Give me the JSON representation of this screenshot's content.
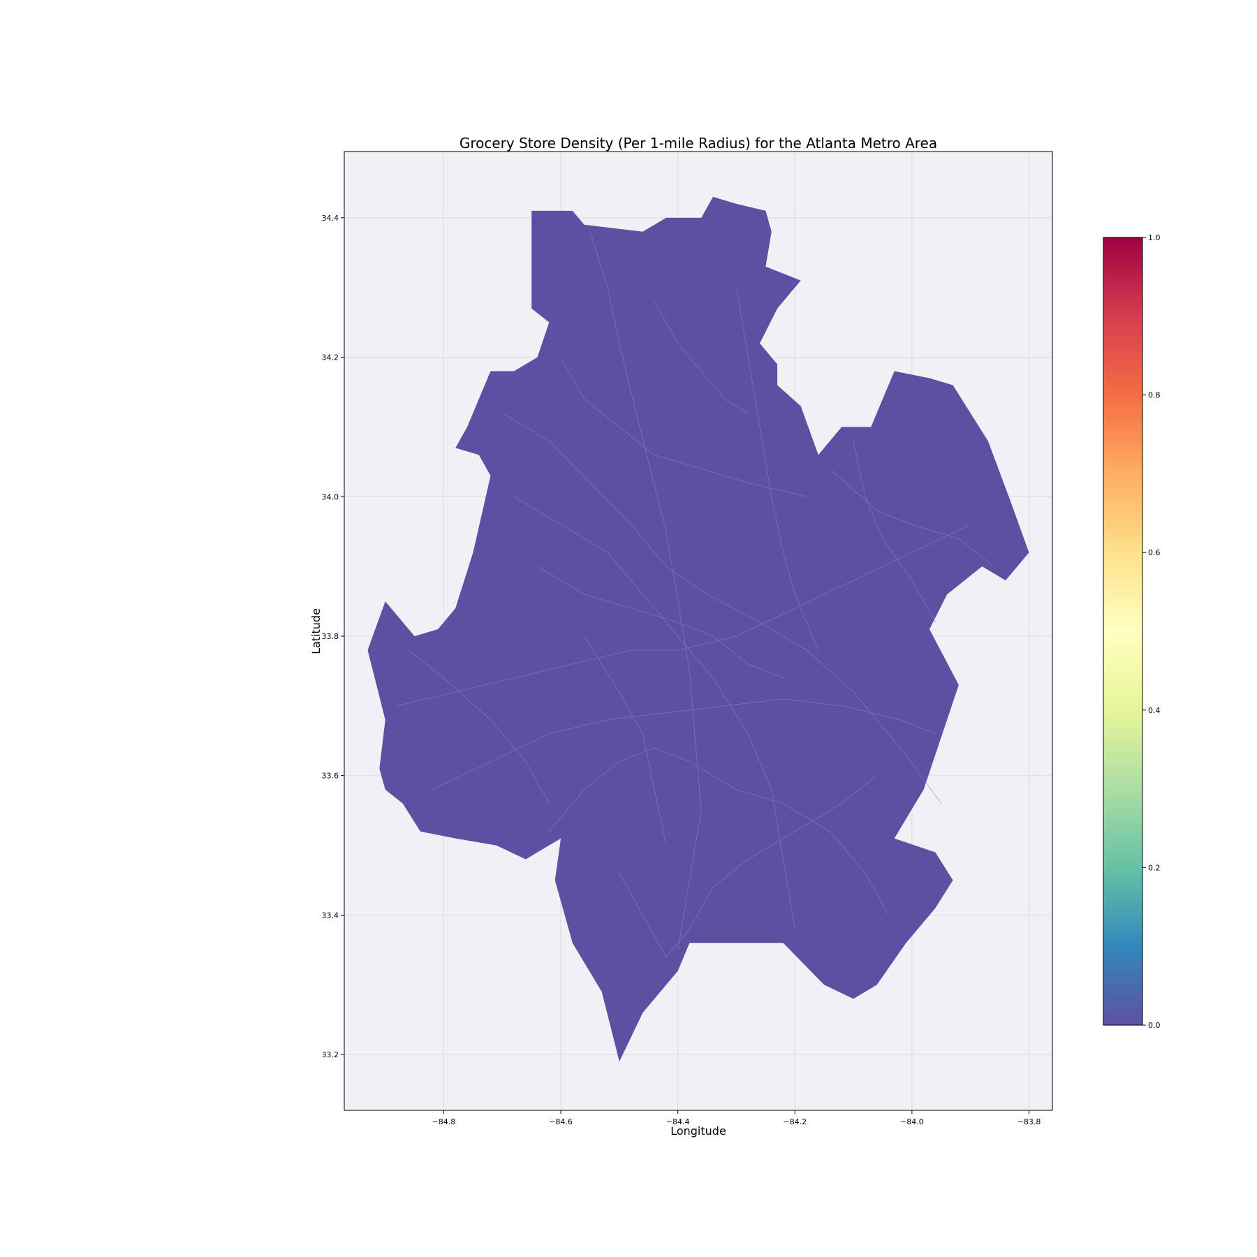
{
  "chart_data": {
    "type": "choropleth",
    "title": "Grocery Store Density (Per 1-mile Radius) for the Atlanta Metro Area",
    "xlabel": "Longitude",
    "ylabel": "Latitude",
    "xlim": [
      -84.97,
      -83.76
    ],
    "ylim": [
      33.12,
      34.495
    ],
    "x_ticks": [
      -84.8,
      -84.6,
      -84.4,
      -84.2,
      -84.0,
      -83.8
    ],
    "x_tick_labels": [
      "−84.8",
      "−84.6",
      "−84.4",
      "−84.2",
      "−84.0",
      "−83.8"
    ],
    "y_ticks": [
      33.2,
      33.4,
      33.6,
      33.8,
      34.0,
      34.2,
      34.4
    ],
    "y_tick_labels": [
      "33.2",
      "33.4",
      "33.6",
      "33.8",
      "34.0",
      "34.2",
      "34.4"
    ],
    "grid": true,
    "colorbar": {
      "colormap": "Spectral_r",
      "range": [
        0.0,
        1.0
      ],
      "ticks": [
        0.0,
        0.2,
        0.4,
        0.6,
        0.8,
        1.0
      ],
      "tick_labels": [
        "0.0",
        "0.2",
        "0.4",
        "0.6",
        "0.8",
        "1.0"
      ],
      "colors": [
        "#5e4fa2",
        "#3288bd",
        "#66c2a5",
        "#abdda4",
        "#e6f598",
        "#ffffbf",
        "#fee08b",
        "#fdae61",
        "#f46d43",
        "#d53e4f",
        "#9e0142"
      ]
    },
    "regions_value": 0.0,
    "region_fill": "#5e4fa2",
    "background": "#f0f0f5",
    "outline": [
      [
        -84.65,
        34.41
      ],
      [
        -84.58,
        34.41
      ],
      [
        -84.56,
        34.39
      ],
      [
        -84.46,
        34.38
      ],
      [
        -84.42,
        34.4
      ],
      [
        -84.36,
        34.4
      ],
      [
        -84.34,
        34.43
      ],
      [
        -84.3,
        34.42
      ],
      [
        -84.25,
        34.41
      ],
      [
        -84.24,
        34.38
      ],
      [
        -84.25,
        34.33
      ],
      [
        -84.19,
        34.31
      ],
      [
        -84.23,
        34.27
      ],
      [
        -84.26,
        34.22
      ],
      [
        -84.23,
        34.19
      ],
      [
        -84.23,
        34.16
      ],
      [
        -84.19,
        34.13
      ],
      [
        -84.16,
        34.06
      ],
      [
        -84.12,
        34.1
      ],
      [
        -84.07,
        34.1
      ],
      [
        -84.03,
        34.18
      ],
      [
        -83.97,
        34.17
      ],
      [
        -83.93,
        34.16
      ],
      [
        -83.87,
        34.08
      ],
      [
        -83.83,
        33.99
      ],
      [
        -83.8,
        33.92
      ],
      [
        -83.84,
        33.88
      ],
      [
        -83.88,
        33.9
      ],
      [
        -83.94,
        33.86
      ],
      [
        -83.97,
        33.81
      ],
      [
        -83.92,
        33.73
      ],
      [
        -83.98,
        33.58
      ],
      [
        -84.03,
        33.51
      ],
      [
        -83.96,
        33.49
      ],
      [
        -83.93,
        33.45
      ],
      [
        -83.96,
        33.41
      ],
      [
        -84.01,
        33.36
      ],
      [
        -84.06,
        33.3
      ],
      [
        -84.1,
        33.28
      ],
      [
        -84.15,
        33.3
      ],
      [
        -84.22,
        33.36
      ],
      [
        -84.3,
        33.36
      ],
      [
        -84.38,
        33.36
      ],
      [
        -84.4,
        33.32
      ],
      [
        -84.46,
        33.26
      ],
      [
        -84.5,
        33.19
      ],
      [
        -84.53,
        33.29
      ],
      [
        -84.58,
        33.36
      ],
      [
        -84.61,
        33.45
      ],
      [
        -84.6,
        33.51
      ],
      [
        -84.66,
        33.48
      ],
      [
        -84.71,
        33.5
      ],
      [
        -84.78,
        33.51
      ],
      [
        -84.84,
        33.52
      ],
      [
        -84.87,
        33.56
      ],
      [
        -84.9,
        33.58
      ],
      [
        -84.91,
        33.61
      ],
      [
        -84.9,
        33.68
      ],
      [
        -84.93,
        33.78
      ],
      [
        -84.9,
        33.85
      ],
      [
        -84.85,
        33.8
      ],
      [
        -84.81,
        33.81
      ],
      [
        -84.78,
        33.84
      ],
      [
        -84.75,
        33.92
      ],
      [
        -84.72,
        34.03
      ],
      [
        -84.74,
        34.06
      ],
      [
        -84.78,
        34.07
      ],
      [
        -84.76,
        34.1
      ],
      [
        -84.74,
        34.14
      ],
      [
        -84.72,
        34.18
      ],
      [
        -84.68,
        34.18
      ],
      [
        -84.64,
        34.2
      ],
      [
        -84.62,
        34.25
      ],
      [
        -84.65,
        34.27
      ],
      [
        -84.65,
        34.33
      ]
    ],
    "boundaries": [
      [
        [
          -84.55,
          34.38
        ],
        [
          -84.52,
          34.3
        ],
        [
          -84.5,
          34.22
        ],
        [
          -84.48,
          34.15
        ],
        [
          -84.45,
          34.05
        ],
        [
          -84.42,
          33.95
        ],
        [
          -84.4,
          33.85
        ],
        [
          -84.38,
          33.75
        ],
        [
          -84.37,
          33.65
        ],
        [
          -84.36,
          33.55
        ],
        [
          -84.38,
          33.45
        ],
        [
          -84.4,
          33.35
        ]
      ],
      [
        [
          -84.7,
          34.12
        ],
        [
          -84.62,
          34.08
        ],
        [
          -84.55,
          34.02
        ],
        [
          -84.48,
          33.96
        ],
        [
          -84.42,
          33.9
        ],
        [
          -84.35,
          33.86
        ],
        [
          -84.26,
          33.82
        ],
        [
          -84.18,
          33.78
        ],
        [
          -84.1,
          33.72
        ],
        [
          -84.02,
          33.64
        ],
        [
          -83.95,
          33.56
        ]
      ],
      [
        [
          -84.88,
          33.7
        ],
        [
          -84.78,
          33.72
        ],
        [
          -84.68,
          33.74
        ],
        [
          -84.58,
          33.76
        ],
        [
          -84.48,
          33.78
        ],
        [
          -84.4,
          33.78
        ],
        [
          -84.3,
          33.8
        ],
        [
          -84.2,
          33.84
        ],
        [
          -84.1,
          33.88
        ],
        [
          -84.0,
          33.92
        ],
        [
          -83.9,
          33.96
        ]
      ],
      [
        [
          -84.82,
          33.58
        ],
        [
          -84.72,
          33.62
        ],
        [
          -84.62,
          33.66
        ],
        [
          -84.52,
          33.68
        ],
        [
          -84.42,
          33.69
        ],
        [
          -84.32,
          33.7
        ],
        [
          -84.22,
          33.71
        ],
        [
          -84.12,
          33.7
        ],
        [
          -84.02,
          33.68
        ],
        [
          -83.96,
          33.66
        ]
      ],
      [
        [
          -84.62,
          33.52
        ],
        [
          -84.56,
          33.58
        ],
        [
          -84.5,
          33.62
        ],
        [
          -84.44,
          33.64
        ],
        [
          -84.38,
          33.62
        ],
        [
          -84.3,
          33.58
        ],
        [
          -84.22,
          33.56
        ],
        [
          -84.14,
          33.52
        ],
        [
          -84.08,
          33.46
        ],
        [
          -84.04,
          33.4
        ]
      ],
      [
        [
          -84.68,
          34.0
        ],
        [
          -84.6,
          33.96
        ],
        [
          -84.52,
          33.92
        ],
        [
          -84.44,
          33.84
        ],
        [
          -84.4,
          33.8
        ],
        [
          -84.34,
          33.74
        ],
        [
          -84.28,
          33.66
        ],
        [
          -84.24,
          33.58
        ],
        [
          -84.22,
          33.48
        ],
        [
          -84.2,
          33.38
        ]
      ],
      [
        [
          -84.3,
          34.3
        ],
        [
          -84.28,
          34.2
        ],
        [
          -84.26,
          34.1
        ],
        [
          -84.24,
          34.0
        ],
        [
          -84.22,
          33.92
        ],
        [
          -84.2,
          33.86
        ],
        [
          -84.16,
          33.78
        ]
      ],
      [
        [
          -84.1,
          34.08
        ],
        [
          -84.08,
          34.0
        ],
        [
          -84.05,
          33.94
        ],
        [
          -84.0,
          33.88
        ],
        [
          -83.96,
          33.82
        ]
      ],
      [
        [
          -84.86,
          33.78
        ],
        [
          -84.8,
          33.74
        ],
        [
          -84.72,
          33.68
        ],
        [
          -84.66,
          33.62
        ],
        [
          -84.62,
          33.56
        ]
      ],
      [
        [
          -84.6,
          34.2
        ],
        [
          -84.56,
          34.14
        ],
        [
          -84.5,
          34.1
        ],
        [
          -84.44,
          34.06
        ],
        [
          -84.36,
          34.04
        ],
        [
          -84.28,
          34.02
        ],
        [
          -84.18,
          34.0
        ]
      ],
      [
        [
          -84.64,
          33.9
        ],
        [
          -84.56,
          33.86
        ],
        [
          -84.48,
          33.84
        ],
        [
          -84.4,
          33.82
        ],
        [
          -84.34,
          33.8
        ],
        [
          -84.28,
          33.76
        ],
        [
          -84.22,
          33.74
        ]
      ],
      [
        [
          -84.5,
          33.46
        ],
        [
          -84.46,
          33.4
        ],
        [
          -84.42,
          33.34
        ],
        [
          -84.38,
          33.38
        ],
        [
          -84.34,
          33.44
        ],
        [
          -84.28,
          33.48
        ],
        [
          -84.2,
          33.52
        ],
        [
          -84.12,
          33.56
        ],
        [
          -84.06,
          33.6
        ]
      ],
      [
        [
          -84.14,
          34.04
        ],
        [
          -84.06,
          33.98
        ],
        [
          -84.0,
          33.96
        ],
        [
          -83.92,
          33.94
        ],
        [
          -83.86,
          33.9
        ]
      ],
      [
        [
          -84.44,
          34.28
        ],
        [
          -84.4,
          34.22
        ],
        [
          -84.36,
          34.18
        ],
        [
          -84.32,
          34.14
        ],
        [
          -84.28,
          34.12
        ]
      ],
      [
        [
          -84.56,
          33.8
        ],
        [
          -84.5,
          33.72
        ],
        [
          -84.46,
          33.66
        ],
        [
          -84.44,
          33.58
        ],
        [
          -84.42,
          33.5
        ]
      ]
    ]
  }
}
